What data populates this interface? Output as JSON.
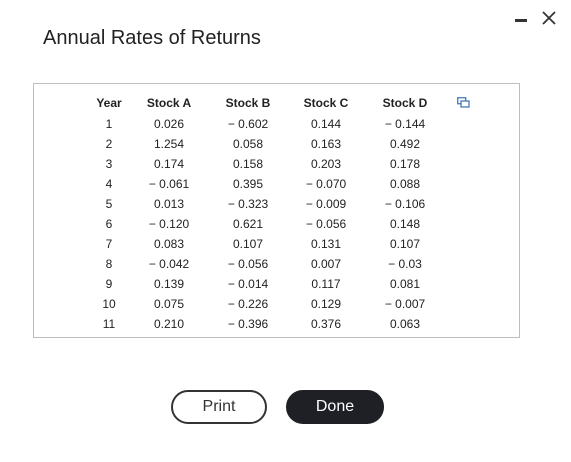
{
  "dialog": {
    "title": "Annual Rates of Returns",
    "print_label": "Print",
    "done_label": "Done"
  },
  "table": {
    "headers": [
      "Year",
      "Stock A",
      "Stock B",
      "Stock C",
      "Stock D"
    ],
    "rows": [
      [
        "1",
        "0.026",
        "− 0.602",
        "0.144",
        "− 0.144"
      ],
      [
        "2",
        "1.254",
        "0.058",
        "0.163",
        "0.492"
      ],
      [
        "3",
        "0.174",
        "0.158",
        "0.203",
        "0.178"
      ],
      [
        "4",
        "− 0.061",
        "0.395",
        "− 0.070",
        "0.088"
      ],
      [
        "5",
        "0.013",
        "− 0.323",
        "− 0.009",
        "− 0.106"
      ],
      [
        "6",
        "− 0.120",
        "0.621",
        "− 0.056",
        "0.148"
      ],
      [
        "7",
        "0.083",
        "0.107",
        "0.131",
        "0.107"
      ],
      [
        "8",
        "− 0.042",
        "− 0.056",
        "0.007",
        "− 0.03"
      ],
      [
        "9",
        "0.139",
        "− 0.014",
        "0.117",
        "0.081"
      ],
      [
        "10",
        "0.075",
        "− 0.226",
        "0.129",
        "− 0.007"
      ],
      [
        "11",
        "0.210",
        "− 0.396",
        "0.376",
        "0.063"
      ]
    ]
  },
  "icons": {
    "minimize": "minimize-icon",
    "close": "close-icon",
    "copy": "copy-icon"
  }
}
